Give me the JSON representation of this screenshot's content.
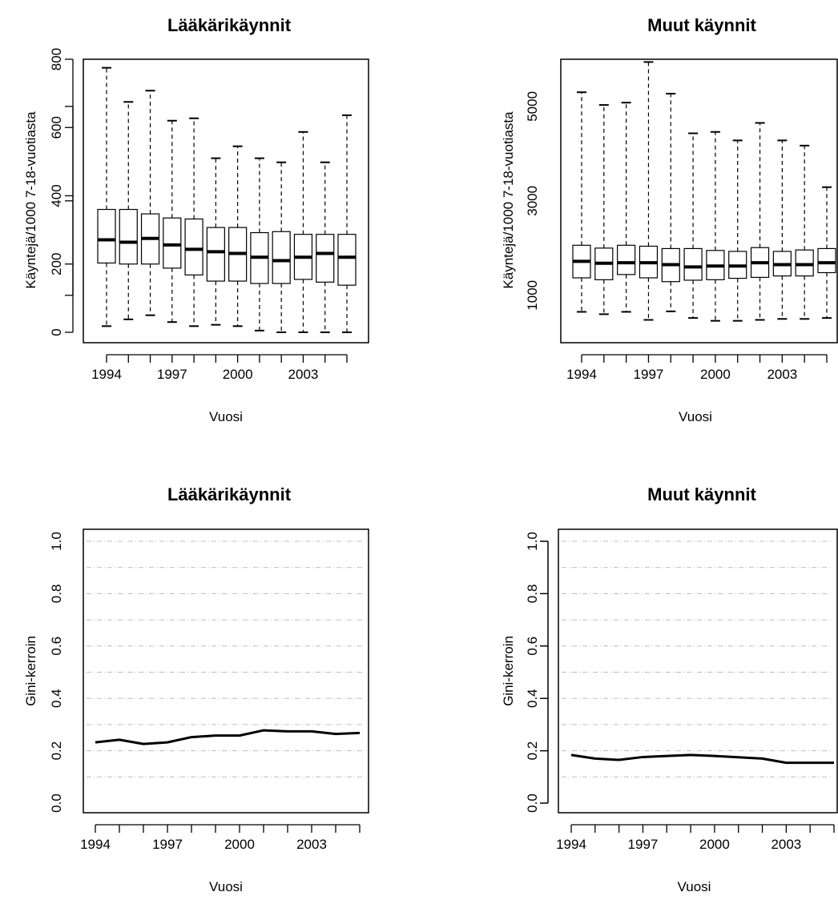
{
  "chart_data": [
    {
      "type": "boxplot",
      "title": "Lääkärikäynnit",
      "xlabel": "Vuosi",
      "ylabel": "Käyntejä/1000 7-18-vuotiasta",
      "x": [
        1994,
        1995,
        1996,
        1997,
        1998,
        1999,
        2000,
        2001,
        2002,
        2003,
        2004,
        2005
      ],
      "x_tick_labels": [
        "1994",
        "1997",
        "2000",
        "2003"
      ],
      "y_ticks": [
        0,
        200,
        400,
        600,
        800
      ],
      "ylim": [
        0,
        800
      ],
      "grid": false,
      "boxes": [
        {
          "x": 1994,
          "min": 18,
          "q1": 203,
          "median": 271,
          "q3": 360,
          "max": 775
        },
        {
          "x": 1995,
          "min": 38,
          "q1": 200,
          "median": 264,
          "q3": 360,
          "max": 675
        },
        {
          "x": 1996,
          "min": 50,
          "q1": 200,
          "median": 275,
          "q3": 347,
          "max": 708
        },
        {
          "x": 1997,
          "min": 30,
          "q1": 188,
          "median": 256,
          "q3": 335,
          "max": 620
        },
        {
          "x": 1998,
          "min": 18,
          "q1": 168,
          "median": 243,
          "q3": 332,
          "max": 627
        },
        {
          "x": 1999,
          "min": 22,
          "q1": 150,
          "median": 236,
          "q3": 307,
          "max": 510
        },
        {
          "x": 2000,
          "min": 18,
          "q1": 150,
          "median": 231,
          "q3": 307,
          "max": 545
        },
        {
          "x": 2001,
          "min": 5,
          "q1": 143,
          "median": 220,
          "q3": 292,
          "max": 510
        },
        {
          "x": 2002,
          "min": 0,
          "q1": 143,
          "median": 210,
          "q3": 295,
          "max": 498
        },
        {
          "x": 2003,
          "min": 0,
          "q1": 155,
          "median": 220,
          "q3": 287,
          "max": 587
        },
        {
          "x": 2004,
          "min": 0,
          "q1": 147,
          "median": 231,
          "q3": 287,
          "max": 498
        },
        {
          "x": 2005,
          "min": 0,
          "q1": 138,
          "median": 220,
          "q3": 287,
          "max": 636
        }
      ]
    },
    {
      "type": "boxplot",
      "title": "Muut käynnit",
      "xlabel": "Vuosi",
      "ylabel": "Käyntejä/1000 7-18-vuotiasta",
      "x": [
        1994,
        1995,
        1996,
        1997,
        1998,
        1999,
        2000,
        2001,
        2002,
        2003,
        2004,
        2005
      ],
      "x_tick_labels": [
        "1994",
        "1997",
        "2000",
        "2003"
      ],
      "y_ticks": [
        1000,
        3000,
        5000
      ],
      "ylim": [
        200,
        6100
      ],
      "grid": false,
      "boxes": [
        {
          "x": 1994,
          "min": 650,
          "q1": 1370,
          "median": 1720,
          "q3": 2060,
          "max": 5300
        },
        {
          "x": 1995,
          "min": 600,
          "q1": 1330,
          "median": 1680,
          "q3": 2000,
          "max": 5030
        },
        {
          "x": 1996,
          "min": 650,
          "q1": 1440,
          "median": 1690,
          "q3": 2060,
          "max": 5080
        },
        {
          "x": 1997,
          "min": 480,
          "q1": 1370,
          "median": 1690,
          "q3": 2040,
          "max": 5940
        },
        {
          "x": 1998,
          "min": 660,
          "q1": 1290,
          "median": 1650,
          "q3": 1990,
          "max": 5270
        },
        {
          "x": 1999,
          "min": 520,
          "q1": 1320,
          "median": 1600,
          "q3": 1990,
          "max": 4430
        },
        {
          "x": 2000,
          "min": 460,
          "q1": 1330,
          "median": 1620,
          "q3": 1950,
          "max": 4460
        },
        {
          "x": 2001,
          "min": 460,
          "q1": 1360,
          "median": 1620,
          "q3": 1930,
          "max": 4280
        },
        {
          "x": 2002,
          "min": 480,
          "q1": 1380,
          "median": 1690,
          "q3": 2010,
          "max": 4650
        },
        {
          "x": 2003,
          "min": 500,
          "q1": 1410,
          "median": 1650,
          "q3": 1930,
          "max": 4280
        },
        {
          "x": 2004,
          "min": 500,
          "q1": 1410,
          "median": 1650,
          "q3": 1960,
          "max": 4170
        },
        {
          "x": 2005,
          "min": 520,
          "q1": 1480,
          "median": 1690,
          "q3": 1990,
          "max": 3290
        }
      ]
    },
    {
      "type": "line",
      "title": "Lääkärikäynnit",
      "xlabel": "Vuosi",
      "ylabel": "Gini-kerroin",
      "x": [
        1994,
        1995,
        1996,
        1997,
        1998,
        1999,
        2000,
        2001,
        2002,
        2003,
        2004,
        2005
      ],
      "x_tick_labels": [
        "1994",
        "1997",
        "2000",
        "2003"
      ],
      "y_ticks": [
        0.0,
        0.2,
        0.4,
        0.6,
        0.8,
        1.0
      ],
      "y_tick_labels": [
        "0.0",
        "0.2",
        "0.4",
        "0.6",
        "0.8",
        "1.0"
      ],
      "ylim": [
        0,
        1
      ],
      "grid": true,
      "gridlines": [
        0.1,
        0.2,
        0.3,
        0.4,
        0.5,
        0.6,
        0.7,
        0.8,
        0.9,
        1.0
      ],
      "series": [
        {
          "values": [
            0.232,
            0.242,
            0.226,
            0.232,
            0.252,
            0.258,
            0.258,
            0.278,
            0.274,
            0.274,
            0.264,
            0.268
          ]
        }
      ]
    },
    {
      "type": "line",
      "title": "Muut käynnit",
      "xlabel": "Vuosi",
      "ylabel": "Gini-kerroin",
      "x": [
        1994,
        1995,
        1996,
        1997,
        1998,
        1999,
        2000,
        2001,
        2002,
        2003,
        2004,
        2005
      ],
      "x_tick_labels": [
        "1994",
        "1997",
        "2000",
        "2003"
      ],
      "y_ticks": [
        0.0,
        0.2,
        0.4,
        0.6,
        0.8,
        1.0
      ],
      "y_tick_labels": [
        "0.0",
        "0.2",
        "0.4",
        "0.6",
        "0.8",
        "1.0"
      ],
      "ylim": [
        0,
        1
      ],
      "grid": true,
      "gridlines": [
        0.1,
        0.2,
        0.3,
        0.4,
        0.5,
        0.6,
        0.7,
        0.8,
        0.9,
        1.0
      ],
      "series": [
        {
          "values": [
            0.184,
            0.17,
            0.165,
            0.176,
            0.18,
            0.184,
            0.18,
            0.175,
            0.17,
            0.154,
            0.154,
            0.154
          ]
        }
      ]
    }
  ]
}
